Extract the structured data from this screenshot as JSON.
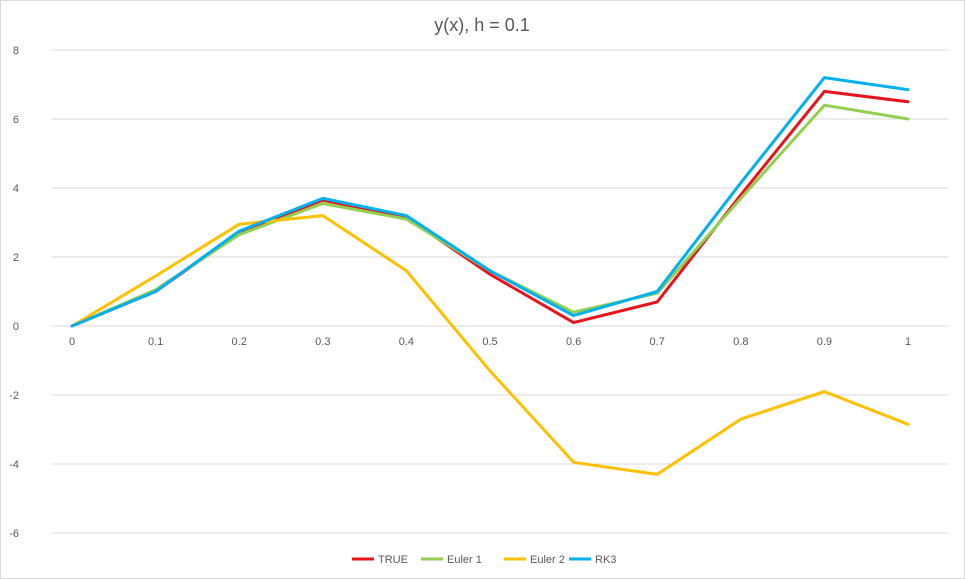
{
  "chart_data": {
    "type": "line",
    "title": "y(x), h = 0.1",
    "xlabel": "",
    "ylabel": "",
    "categories": [
      "0",
      "0.1",
      "0.2",
      "0.3",
      "0.4",
      "0.5",
      "0.6",
      "0.7",
      "0.8",
      "0.9",
      "1"
    ],
    "ylim": [
      -6,
      8
    ],
    "yticks": [
      -6,
      -4,
      -2,
      0,
      2,
      4,
      6,
      8
    ],
    "grid": "horizontal",
    "legend_position": "bottom",
    "series": [
      {
        "name": "TRUE",
        "color": "#e8141c",
        "values": [
          0,
          1.0,
          2.7,
          3.65,
          3.15,
          1.5,
          0.1,
          0.7,
          3.8,
          6.8,
          6.5
        ]
      },
      {
        "name": "Euler 1",
        "color": "#92d050",
        "values": [
          0,
          1.05,
          2.65,
          3.55,
          3.1,
          1.6,
          0.4,
          0.95,
          3.7,
          6.4,
          6.0
        ]
      },
      {
        "name": "Euler 2",
        "color": "#ffc000",
        "values": [
          0,
          1.45,
          2.95,
          3.2,
          1.6,
          -1.3,
          -3.95,
          -4.3,
          -2.7,
          -1.9,
          -2.85
        ]
      },
      {
        "name": "RK3",
        "color": "#00b0f0",
        "values": [
          0,
          1.0,
          2.75,
          3.7,
          3.2,
          1.6,
          0.3,
          1.0,
          4.15,
          7.2,
          6.85
        ]
      }
    ]
  }
}
